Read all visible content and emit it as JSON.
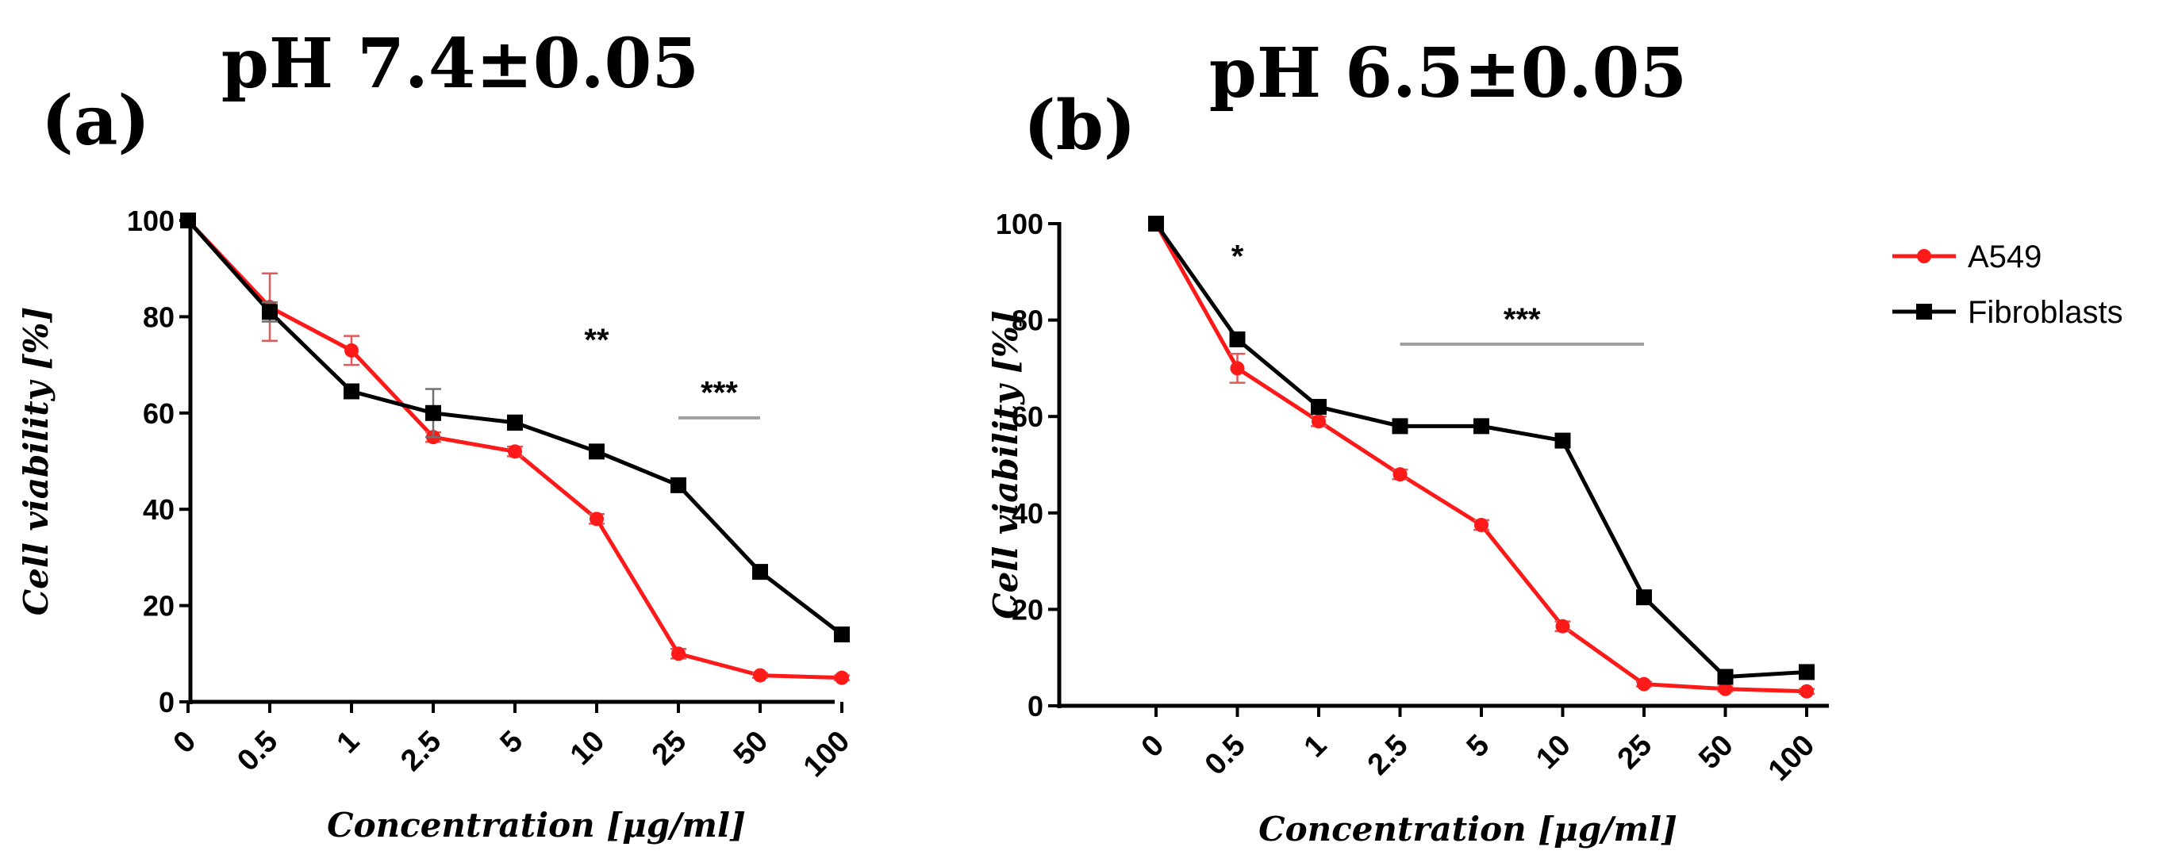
{
  "colors": {
    "a549": "#ff1a1a",
    "fibroblasts": "#000000",
    "axis": "#000000",
    "significance_bar": "#a0a0a0"
  },
  "legend": {
    "position": "right",
    "items": [
      "A549",
      "Fibroblasts"
    ]
  },
  "chart_data": [
    {
      "type": "line",
      "panel": "(a)",
      "title": "pH 7.4±0.05",
      "xlabel": "Concentration [μg/ml]",
      "ylabel": "Cell viability [%]",
      "categories": [
        "0",
        "0.5",
        "1",
        "2.5",
        "5",
        "10",
        "25",
        "50",
        "100"
      ],
      "ylim": [
        0,
        100
      ],
      "yticks": [
        "0",
        "20",
        "40",
        "60",
        "80",
        "100"
      ],
      "series": [
        {
          "name": "A549",
          "values": [
            100,
            82,
            73,
            55,
            52,
            38,
            10,
            5.5,
            5
          ],
          "errors": [
            0,
            7,
            3,
            1,
            1,
            1,
            1,
            0.5,
            0.5
          ]
        },
        {
          "name": "Fibroblasts",
          "values": [
            100,
            81,
            64.5,
            60,
            58,
            52,
            45,
            27,
            14
          ],
          "errors": [
            0,
            2,
            1,
            5,
            1.5,
            1,
            1,
            1,
            1
          ]
        }
      ],
      "annotations": [
        {
          "text": "**",
          "x": "10",
          "y": 73
        },
        {
          "text": "***",
          "x_range": [
            "25",
            "50"
          ],
          "y": 59,
          "text_y": 62
        }
      ]
    },
    {
      "type": "line",
      "panel": "(b)",
      "title": "pH 6.5±0.05",
      "xlabel": "Concentration [μg/ml]",
      "ylabel": "Cell viability [%]",
      "categories": [
        "0",
        "0.5",
        "1",
        "2.5",
        "5",
        "10",
        "25",
        "50",
        "100"
      ],
      "ylim": [
        0,
        100
      ],
      "yticks": [
        "0",
        "20",
        "40",
        "60",
        "80",
        "100"
      ],
      "series": [
        {
          "name": "A549",
          "values": [
            100,
            70,
            59,
            48,
            37.5,
            16.5,
            4.5,
            3.5,
            3
          ],
          "errors": [
            0,
            3,
            1,
            1,
            1,
            1,
            0.5,
            0.5,
            0.5
          ]
        },
        {
          "name": "Fibroblasts",
          "values": [
            100,
            76,
            62,
            58,
            58,
            55,
            22.5,
            6,
            7
          ],
          "errors": [
            0,
            1,
            1,
            1,
            1,
            1,
            1,
            0.5,
            0.5
          ]
        }
      ],
      "annotations": [
        {
          "text": "*",
          "x": "0.5",
          "y": 91
        },
        {
          "text": "***",
          "x_range": [
            "2.5",
            "25"
          ],
          "y": 75,
          "text_y": 78
        }
      ]
    }
  ]
}
